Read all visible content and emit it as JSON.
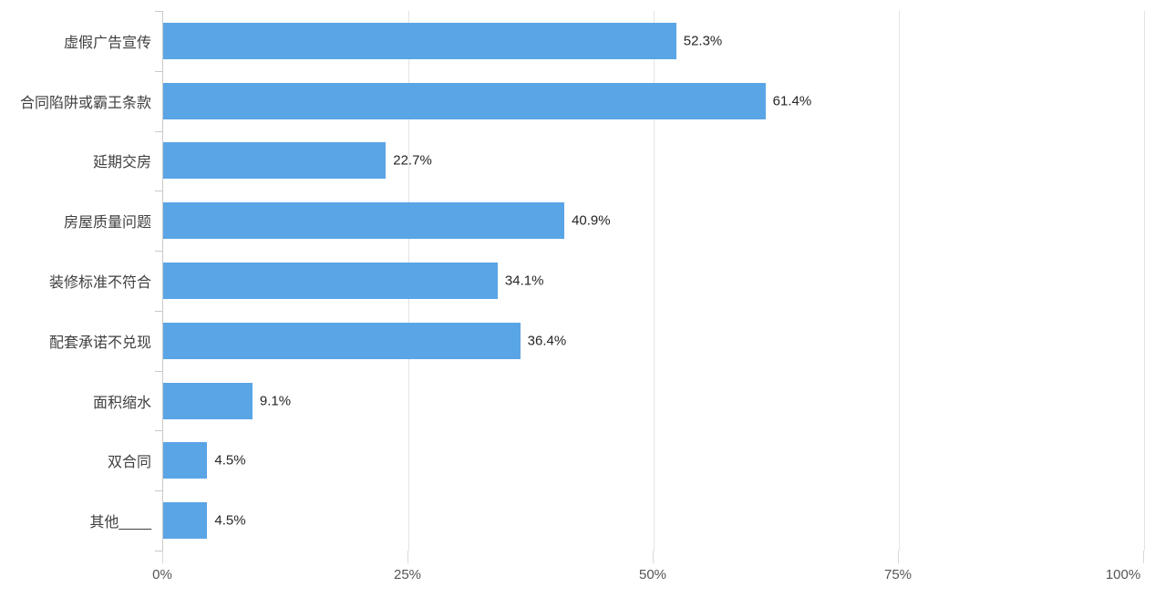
{
  "chart_data": {
    "type": "bar",
    "orientation": "horizontal",
    "title": "",
    "xlabel": "",
    "ylabel": "",
    "categories": [
      "虚假广告宣传",
      "合同陷阱或霸王条款",
      "延期交房",
      "房屋质量问题",
      "装修标准不符合",
      "配套承诺不兑现",
      "面积缩水",
      "双合同",
      "其他____"
    ],
    "values": [
      52.3,
      61.4,
      22.7,
      40.9,
      34.1,
      36.4,
      9.1,
      4.5,
      4.5
    ],
    "value_labels": [
      "52.3%",
      "61.4%",
      "22.7%",
      "40.9%",
      "34.1%",
      "36.4%",
      "9.1%",
      "4.5%",
      "4.5%"
    ],
    "x_ticks": [
      "0%",
      "25%",
      "50%",
      "75%",
      "100%"
    ],
    "x_tick_values": [
      0,
      25,
      50,
      75,
      100
    ],
    "xlim": [
      0,
      100
    ],
    "grid": true,
    "legend": "none",
    "bar_color": "#5AA5E6",
    "gridline_color": "#e4e4e4",
    "axis_color": "#c9c9c9",
    "label_color": "#3f3f3f"
  }
}
